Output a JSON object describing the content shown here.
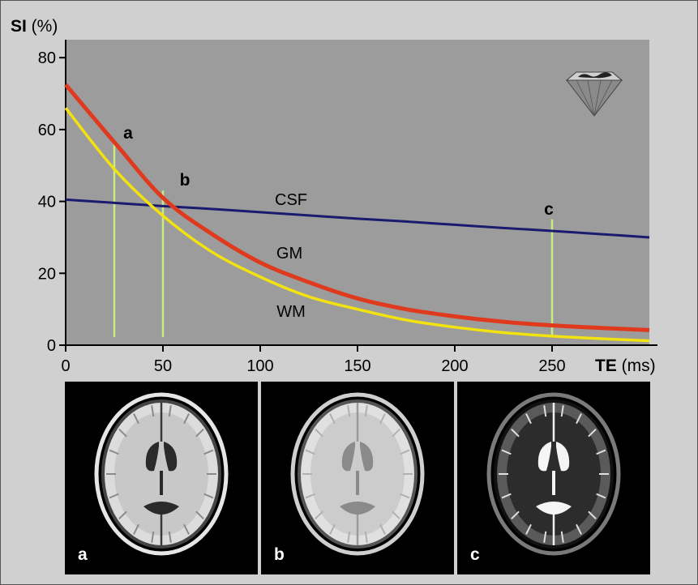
{
  "chart_data": {
    "type": "line",
    "y_axis_title": {
      "bold": "SI",
      "unit": "(%)"
    },
    "x_axis_title": {
      "bold": "TE",
      "unit": "(ms)"
    },
    "xlim": [
      0,
      300
    ],
    "ylim": [
      0,
      85
    ],
    "x_ticks": [
      0,
      50,
      100,
      150,
      200,
      250
    ],
    "y_ticks": [
      0,
      20,
      40,
      60,
      80
    ],
    "grid": false,
    "plot_background": "#9c9c9c",
    "series": [
      {
        "name": "CSF",
        "color": "#1a1a6e",
        "x": [
          0,
          25,
          50,
          75,
          100,
          125,
          150,
          175,
          200,
          225,
          250,
          275,
          300
        ],
        "y": [
          40.5,
          39.6,
          38.7,
          37.9,
          37.0,
          36.1,
          35.2,
          34.4,
          33.5,
          32.6,
          31.8,
          30.9,
          30.0
        ]
      },
      {
        "name": "GM",
        "color": "#e03a1e",
        "x": [
          0,
          25,
          50,
          75,
          100,
          125,
          150,
          175,
          200,
          225,
          250,
          275,
          300
        ],
        "y": [
          72.5,
          56.5,
          41.0,
          31.0,
          23.0,
          17.5,
          13.0,
          10.0,
          8.0,
          6.5,
          5.5,
          4.8,
          4.2
        ]
      },
      {
        "name": "WM",
        "color": "#f2e20f",
        "x": [
          0,
          25,
          50,
          75,
          100,
          125,
          150,
          175,
          200,
          225,
          250,
          275,
          300
        ],
        "y": [
          66.0,
          49.0,
          36.0,
          26.0,
          19.0,
          13.5,
          10.0,
          7.0,
          5.0,
          3.5,
          2.5,
          1.8,
          1.2
        ]
      }
    ],
    "markers": [
      {
        "label": "a",
        "x": 25,
        "y_top": 57
      },
      {
        "label": "b",
        "x": 50,
        "y_top": 43
      },
      {
        "label": "c",
        "x": 250,
        "y_top": 35
      }
    ],
    "marker_color": "#c6ec82"
  },
  "panels": [
    {
      "label": "a",
      "tone": "flair"
    },
    {
      "label": "b",
      "tone": "pd"
    },
    {
      "label": "c",
      "tone": "t2"
    }
  ],
  "logo": {
    "name": "diamond-logo"
  }
}
